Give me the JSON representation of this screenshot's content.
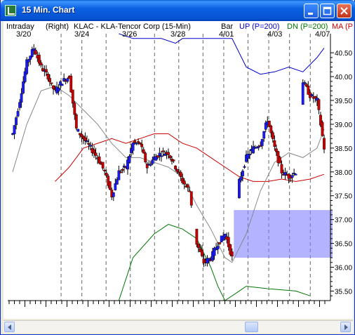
{
  "window": {
    "title": "15 Min. Chart"
  },
  "header": {
    "mode": "Intraday",
    "scale_side": "(Right)",
    "symbol_desc": "KLAC - KLA-Tencor Corp (15-Min)",
    "style": "Bar",
    "indicator_up": "UP (P=200)",
    "indicator_dn": "DN (P=200)",
    "indicator_ma": "MA (P"
  },
  "colors": {
    "up": "#0000cc",
    "dn": "#007700",
    "ma": "#cc0000",
    "bar_up": "#1a1aff",
    "bar_down": "#cc0000",
    "band": "#8080ff"
  },
  "icons": {
    "app": "chart-app-icon",
    "minimize": "minimize-icon",
    "maximize": "maximize-icon",
    "close": "close-icon",
    "left": "arrow-left-icon",
    "right": "arrow-right-icon"
  },
  "chart_data": {
    "type": "candlestick",
    "date_labels": [
      "3/20",
      "3/24",
      "3/26",
      "3/28",
      "4/01",
      "4/03",
      "4/07"
    ],
    "y_ticks": [
      40.5,
      40.0,
      39.5,
      39.0,
      38.5,
      38.0,
      37.5,
      37.0,
      36.5,
      36.0,
      35.5
    ],
    "y_tick_labels": [
      "40.50",
      "40.00",
      "39.50",
      "39.00",
      "38.50",
      "38.00",
      "37.50",
      "37.00",
      "36.50",
      "36.00",
      "35.50"
    ],
    "ylim": [
      35.3,
      40.9
    ],
    "shaded_zone": [
      36.2,
      37.2
    ],
    "close_path": [
      [
        0,
        38.8
      ],
      [
        2,
        39.5
      ],
      [
        4,
        40.3
      ],
      [
        6,
        40.6
      ],
      [
        8,
        40.2
      ],
      [
        10,
        40.0
      ],
      [
        11,
        39.8
      ],
      [
        12,
        39.7
      ],
      [
        14,
        39.9
      ],
      [
        16,
        40.0
      ],
      [
        18,
        38.9
      ],
      [
        20,
        38.7
      ],
      [
        22,
        38.5
      ],
      [
        24,
        38.3
      ],
      [
        26,
        38.0
      ],
      [
        28,
        37.5
      ],
      [
        30,
        38.0
      ],
      [
        32,
        38.1
      ],
      [
        34,
        38.6
      ],
      [
        36,
        38.6
      ],
      [
        38,
        38.1
      ],
      [
        40,
        38.3
      ],
      [
        42,
        38.4
      ],
      [
        44,
        38.4
      ],
      [
        46,
        38.1
      ],
      [
        48,
        37.8
      ],
      [
        50,
        37.6
      ],
      [
        52,
        36.5
      ],
      [
        54,
        36.1
      ],
      [
        56,
        36.2
      ],
      [
        58,
        36.5
      ],
      [
        60,
        36.7
      ],
      [
        62,
        36.2
      ],
      [
        64,
        37.8
      ],
      [
        66,
        38.3
      ],
      [
        68,
        38.5
      ],
      [
        70,
        38.6
      ],
      [
        72,
        39.1
      ],
      [
        74,
        38.5
      ],
      [
        76,
        38.0
      ],
      [
        78,
        37.9
      ],
      [
        80,
        38.0
      ],
      [
        82,
        39.9
      ],
      [
        84,
        39.6
      ],
      [
        86,
        39.5
      ],
      [
        88,
        38.5
      ]
    ],
    "ma_series": [
      [
        12,
        37.8
      ],
      [
        16,
        38.1
      ],
      [
        20,
        38.5
      ],
      [
        24,
        38.6
      ],
      [
        28,
        38.7
      ],
      [
        32,
        38.6
      ],
      [
        36,
        38.7
      ],
      [
        40,
        38.8
      ],
      [
        44,
        38.8
      ],
      [
        48,
        38.6
      ],
      [
        52,
        38.5
      ],
      [
        56,
        38.3
      ],
      [
        60,
        38.1
      ],
      [
        64,
        37.9
      ],
      [
        68,
        37.8
      ],
      [
        72,
        37.8
      ],
      [
        76,
        37.85
      ],
      [
        80,
        37.8
      ],
      [
        84,
        37.85
      ],
      [
        88,
        37.95
      ]
    ],
    "up_series": [
      [
        30,
        40.9
      ],
      [
        34,
        40.8
      ],
      [
        38,
        40.8
      ],
      [
        42,
        40.8
      ],
      [
        46,
        40.7
      ],
      [
        48,
        40.8
      ],
      [
        62,
        40.8
      ],
      [
        66,
        40.2
      ],
      [
        70,
        40.05
      ],
      [
        74,
        40.1
      ],
      [
        78,
        40.2
      ],
      [
        82,
        40.1
      ],
      [
        86,
        40.4
      ],
      [
        88,
        40.6
      ]
    ],
    "dn_series": [
      [
        30,
        35.3
      ],
      [
        34,
        36.2
      ],
      [
        40,
        36.7
      ],
      [
        44,
        36.9
      ],
      [
        48,
        36.8
      ],
      [
        52,
        36.6
      ],
      [
        56,
        36.0
      ],
      [
        58,
        35.6
      ],
      [
        60,
        35.3
      ],
      [
        64,
        35.5
      ],
      [
        66,
        35.6
      ],
      [
        72,
        35.55
      ],
      [
        80,
        35.5
      ],
      [
        84,
        35.4
      ]
    ],
    "avg_series": [
      [
        0,
        38.0
      ],
      [
        4,
        39.0
      ],
      [
        8,
        39.7
      ],
      [
        12,
        39.8
      ],
      [
        16,
        39.6
      ],
      [
        20,
        39.3
      ],
      [
        24,
        39.0
      ],
      [
        28,
        38.6
      ],
      [
        32,
        38.3
      ],
      [
        36,
        38.3
      ],
      [
        40,
        38.2
      ],
      [
        44,
        38.1
      ],
      [
        48,
        37.9
      ],
      [
        52,
        37.3
      ],
      [
        56,
        36.8
      ],
      [
        60,
        36.2
      ],
      [
        62,
        36.1
      ],
      [
        66,
        36.7
      ],
      [
        70,
        37.6
      ],
      [
        74,
        38.2
      ],
      [
        78,
        38.4
      ],
      [
        82,
        38.3
      ],
      [
        86,
        38.5
      ],
      [
        88,
        38.9
      ]
    ]
  }
}
